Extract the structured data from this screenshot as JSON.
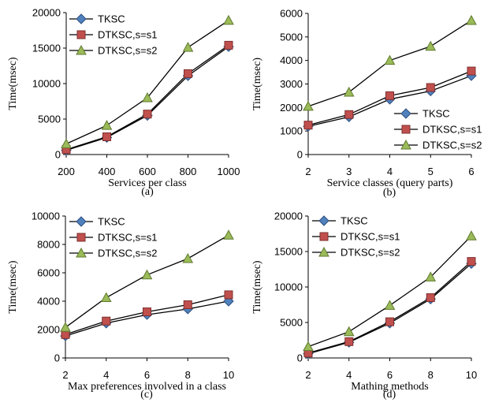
{
  "colors": {
    "TKSC": {
      "line": "#000000",
      "fill": "#4f81bd",
      "stroke": "#2f4f7f"
    },
    "DTKSC,s=s1": {
      "line": "#000000",
      "fill": "#c0504d",
      "stroke": "#7f2f2f"
    },
    "DTKSC,s=s2": {
      "line": "#000000",
      "fill": "#9bbb59",
      "stroke": "#5f7a2f"
    }
  },
  "chart_data": [
    {
      "type": "line",
      "panel_label": "(a)",
      "xlabel": "Services per class",
      "ylabel": "Time(msec)",
      "x": [
        200,
        400,
        600,
        800,
        1000
      ],
      "xlim": [
        200,
        1000
      ],
      "ylim": [
        0,
        20000
      ],
      "yticks": [
        0,
        5000,
        10000,
        15000,
        20000
      ],
      "legend": "top-left",
      "series": [
        {
          "name": "TKSC",
          "marker": "diamond",
          "values": [
            600,
            2400,
            5500,
            11100,
            15200
          ]
        },
        {
          "name": "DTKSC,s=s1",
          "marker": "square",
          "values": [
            700,
            2500,
            5700,
            11400,
            15400
          ]
        },
        {
          "name": "DTKSC,s=s2",
          "marker": "triangle",
          "values": [
            1500,
            4100,
            8000,
            15100,
            18900
          ]
        }
      ]
    },
    {
      "type": "line",
      "panel_label": "(b)",
      "xlabel": "Service classes (query parts)",
      "ylabel": "Time(msec)",
      "x": [
        2,
        3,
        4,
        5,
        6
      ],
      "xlim": [
        2,
        6
      ],
      "ylim": [
        0,
        6000
      ],
      "yticks": [
        0,
        1000,
        2000,
        3000,
        4000,
        5000,
        6000
      ],
      "legend": "bottom-right",
      "series": [
        {
          "name": "TKSC",
          "marker": "diamond",
          "values": [
            1200,
            1600,
            2350,
            2700,
            3350
          ]
        },
        {
          "name": "DTKSC,s=s1",
          "marker": "square",
          "values": [
            1250,
            1700,
            2500,
            2850,
            3550
          ]
        },
        {
          "name": "DTKSC,s=s2",
          "marker": "triangle",
          "values": [
            2050,
            2650,
            4000,
            4600,
            5700
          ]
        }
      ]
    },
    {
      "type": "line",
      "panel_label": "(c)",
      "xlabel": "Max preferences involved in a class",
      "ylabel": "Time(msec)",
      "x": [
        2,
        4,
        6,
        8,
        10
      ],
      "xlim": [
        2,
        10
      ],
      "ylim": [
        0,
        10000
      ],
      "yticks": [
        0,
        2000,
        4000,
        6000,
        8000,
        10000
      ],
      "legend": "top-left",
      "series": [
        {
          "name": "TKSC",
          "marker": "diamond",
          "values": [
            1550,
            2450,
            3050,
            3450,
            4000
          ]
        },
        {
          "name": "DTKSC,s=s1",
          "marker": "square",
          "values": [
            1650,
            2600,
            3250,
            3750,
            4450
          ]
        },
        {
          "name": "DTKSC,s=s2",
          "marker": "triangle",
          "values": [
            2150,
            4250,
            5850,
            7000,
            8650
          ]
        }
      ]
    },
    {
      "type": "line",
      "panel_label": "(d)",
      "xlabel": "Mathing methods",
      "ylabel": "Time(msec)",
      "x": [
        2,
        4,
        6,
        8,
        10
      ],
      "xlim": [
        2,
        10
      ],
      "ylim": [
        0,
        20000
      ],
      "yticks": [
        0,
        5000,
        10000,
        15000,
        20000
      ],
      "legend": "top-left",
      "series": [
        {
          "name": "TKSC",
          "marker": "diamond",
          "values": [
            600,
            2200,
            4900,
            8300,
            13300
          ]
        },
        {
          "name": "DTKSC,s=s1",
          "marker": "square",
          "values": [
            700,
            2300,
            5100,
            8500,
            13600
          ]
        },
        {
          "name": "DTKSC,s=s2",
          "marker": "triangle",
          "values": [
            1600,
            3700,
            7400,
            11400,
            17200
          ]
        }
      ]
    }
  ]
}
